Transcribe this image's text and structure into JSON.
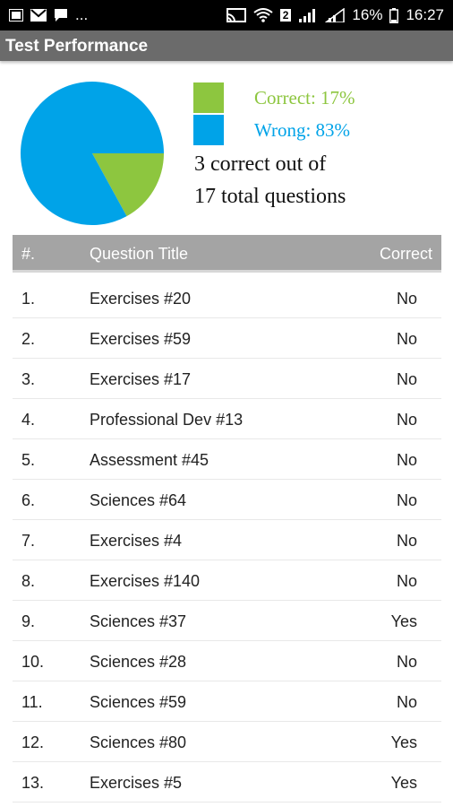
{
  "status_bar": {
    "left_icons": [
      "image-icon",
      "mail-icon",
      "chat-icon"
    ],
    "more": "...",
    "signal_label": "2",
    "battery": "16%",
    "time": "16:27"
  },
  "app_bar": {
    "title": "Test Performance"
  },
  "summary": {
    "correct_legend": "Correct: 17%",
    "wrong_legend": "Wrong: 83%",
    "count_line1": "3 correct out of",
    "count_line2": "17 total questions",
    "colors": {
      "correct": "#8dc63f",
      "wrong": "#00a3e8"
    }
  },
  "chart_data": {
    "type": "pie",
    "slices": [
      {
        "name": "Correct",
        "value": 17,
        "color": "#8dc63f"
      },
      {
        "name": "Wrong",
        "value": 83,
        "color": "#00a3e8"
      }
    ]
  },
  "table": {
    "headers": {
      "num": "#.",
      "title": "Question Title",
      "correct": "Correct"
    },
    "rows": [
      {
        "num": "1.",
        "title": "Exercises #20",
        "correct": "No"
      },
      {
        "num": "2.",
        "title": "Exercises #59",
        "correct": "No"
      },
      {
        "num": "3.",
        "title": "Exercises #17",
        "correct": "No"
      },
      {
        "num": "4.",
        "title": "Professional Dev #13",
        "correct": "No"
      },
      {
        "num": "5.",
        "title": "Assessment #45",
        "correct": "No"
      },
      {
        "num": "6.",
        "title": "Sciences #64",
        "correct": "No"
      },
      {
        "num": "7.",
        "title": "Exercises #4",
        "correct": "No"
      },
      {
        "num": "8.",
        "title": "Exercises #140",
        "correct": "No"
      },
      {
        "num": "9.",
        "title": "Sciences #37",
        "correct": "Yes"
      },
      {
        "num": "10.",
        "title": "Sciences #28",
        "correct": "No"
      },
      {
        "num": "11.",
        "title": "Sciences #59",
        "correct": "No"
      },
      {
        "num": "12.",
        "title": "Sciences #80",
        "correct": "Yes"
      },
      {
        "num": "13.",
        "title": "Exercises #5",
        "correct": "Yes"
      }
    ]
  }
}
